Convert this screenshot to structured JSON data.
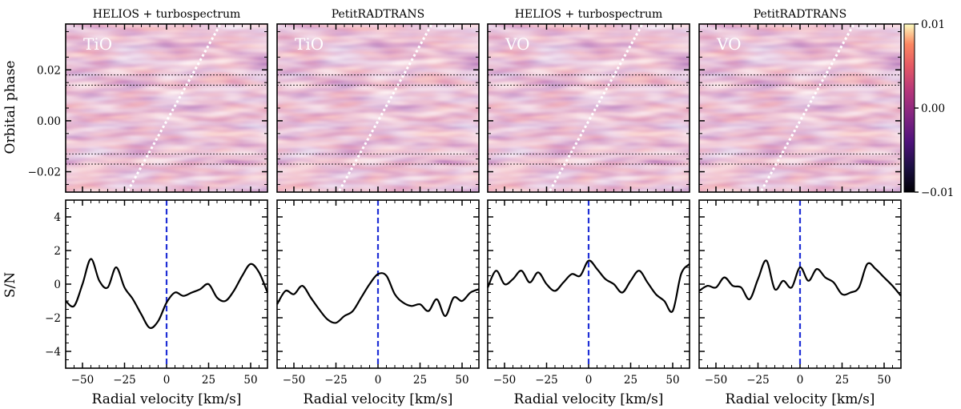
{
  "colors": {
    "panel_low": "#1b0f3d",
    "panel_mid": "#8e2f6a",
    "panel_high": "#ffe9a9",
    "trail_line": "#ffffff",
    "rv_marker": "#1f2fd6",
    "sn_curve": "#000000"
  },
  "labels": {
    "ylabel_top": "Orbital phase",
    "ylabel_bottom": "S/N",
    "xlabel": "Radial velocity [km/s]"
  },
  "colorbar": {
    "ticks": [
      "0.01",
      "0.00",
      "−0.01"
    ],
    "vmin": -0.01,
    "vmax": 0.01
  },
  "chart_data": [
    {
      "type": "heatmap",
      "title": "HELIOS + turbospectrum",
      "molecule": "TiO",
      "xlim": [
        -60,
        60
      ],
      "ylim": [
        -0.028,
        0.038
      ],
      "yticks": [
        "0.02",
        "0.00",
        "−0.02"
      ],
      "ytick_values": [
        0.02,
        0.0,
        -0.02
      ],
      "trail": {
        "x1": -23,
        "y1": -0.0275,
        "x2": 32,
        "y2": 0.038
      },
      "dashed_phases": [
        0.018,
        0.014,
        -0.013,
        -0.017
      ]
    },
    {
      "type": "heatmap",
      "title": "PetitRADTRANS",
      "molecule": "TiO",
      "xlim": [
        -60,
        60
      ],
      "ylim": [
        -0.028,
        0.038
      ],
      "trail": {
        "x1": -23,
        "y1": -0.0275,
        "x2": 32,
        "y2": 0.038
      },
      "dashed_phases": [
        0.018,
        0.014,
        -0.013,
        -0.017
      ]
    },
    {
      "type": "heatmap",
      "title": "HELIOS + turbospectrum",
      "molecule": "VO",
      "xlim": [
        -60,
        60
      ],
      "ylim": [
        -0.028,
        0.038
      ],
      "trail": {
        "x1": -23,
        "y1": -0.0275,
        "x2": 32,
        "y2": 0.038
      },
      "dashed_phases": [
        0.018,
        0.014,
        -0.013,
        -0.017
      ]
    },
    {
      "type": "heatmap",
      "title": "PetitRADTRANS",
      "molecule": "VO",
      "xlim": [
        -60,
        60
      ],
      "ylim": [
        -0.028,
        0.038
      ],
      "trail": {
        "x1": -23,
        "y1": -0.0275,
        "x2": 32,
        "y2": 0.038
      },
      "dashed_phases": [
        0.018,
        0.014,
        -0.013,
        -0.017
      ]
    },
    {
      "type": "line",
      "xlim": [
        -60,
        60
      ],
      "ylim": [
        -5,
        5
      ],
      "xticks": [
        "−50",
        "−25",
        "0",
        "25",
        "50"
      ],
      "xtick_values": [
        -50,
        -25,
        0,
        25,
        50
      ],
      "yticks": [
        "4",
        "2",
        "0",
        "−2",
        "−4"
      ],
      "ytick_values": [
        4,
        2,
        0,
        -2,
        -4
      ],
      "marker_x": 0,
      "x": [
        -60,
        -55,
        -50,
        -45,
        -40,
        -35,
        -30,
        -25,
        -20,
        -15,
        -10,
        -5,
        0,
        5,
        10,
        15,
        20,
        25,
        30,
        35,
        40,
        45,
        50,
        55,
        60
      ],
      "y": [
        -1.0,
        -1.3,
        0.0,
        1.5,
        0.2,
        -0.2,
        1.0,
        -0.2,
        -0.9,
        -1.8,
        -2.6,
        -2.2,
        -1.1,
        -0.5,
        -0.7,
        -0.5,
        -0.3,
        0.0,
        -0.8,
        -1.0,
        -0.4,
        0.5,
        1.2,
        0.7,
        -0.5
      ]
    },
    {
      "type": "line",
      "xlim": [
        -60,
        60
      ],
      "ylim": [
        -5,
        5
      ],
      "xticks": [
        "−50",
        "−25",
        "0",
        "25",
        "50"
      ],
      "xtick_values": [
        -50,
        -25,
        0,
        25,
        50
      ],
      "marker_x": 0,
      "x": [
        -60,
        -55,
        -50,
        -45,
        -40,
        -35,
        -30,
        -25,
        -20,
        -15,
        -10,
        -5,
        0,
        5,
        10,
        15,
        20,
        25,
        30,
        35,
        40,
        45,
        50,
        55,
        60
      ],
      "y": [
        -1.2,
        -0.4,
        -0.6,
        -0.1,
        -0.8,
        -1.5,
        -2.1,
        -2.3,
        -1.9,
        -1.6,
        -0.8,
        0.0,
        0.6,
        0.5,
        -0.6,
        -1.1,
        -1.3,
        -1.2,
        -1.6,
        -0.9,
        -1.9,
        -0.8,
        -1.0,
        -0.5,
        -0.3
      ]
    },
    {
      "type": "line",
      "xlim": [
        -60,
        60
      ],
      "ylim": [
        -5,
        5
      ],
      "xticks": [
        "−50",
        "−25",
        "0",
        "25",
        "50"
      ],
      "xtick_values": [
        -50,
        -25,
        0,
        25,
        50
      ],
      "marker_x": 0,
      "x": [
        -60,
        -55,
        -50,
        -45,
        -40,
        -35,
        -30,
        -25,
        -20,
        -15,
        -10,
        -5,
        0,
        5,
        10,
        15,
        20,
        25,
        30,
        35,
        40,
        45,
        50,
        55,
        60
      ],
      "y": [
        -0.2,
        0.8,
        0.0,
        0.3,
        0.8,
        0.1,
        0.7,
        0.0,
        -0.4,
        0.1,
        0.6,
        0.5,
        1.4,
        0.9,
        0.3,
        0.0,
        -0.5,
        0.2,
        0.8,
        0.1,
        -0.6,
        -1.0,
        -1.6,
        0.6,
        1.2
      ]
    },
    {
      "type": "line",
      "xlim": [
        -60,
        60
      ],
      "ylim": [
        -5,
        5
      ],
      "xticks": [
        "−50",
        "−25",
        "0",
        "25",
        "50"
      ],
      "xtick_values": [
        -50,
        -25,
        0,
        25,
        50
      ],
      "marker_x": 0,
      "x": [
        -60,
        -55,
        -50,
        -45,
        -40,
        -35,
        -30,
        -25,
        -20,
        -15,
        -10,
        -5,
        0,
        5,
        10,
        15,
        20,
        25,
        30,
        35,
        40,
        45,
        50,
        55,
        60
      ],
      "y": [
        -0.4,
        -0.1,
        -0.2,
        0.4,
        -0.1,
        -0.2,
        -0.9,
        0.3,
        1.4,
        -0.3,
        0.2,
        -0.2,
        1.0,
        0.2,
        0.9,
        0.4,
        0.1,
        -0.6,
        -0.5,
        -0.2,
        1.2,
        0.9,
        0.4,
        -0.1,
        -0.7
      ]
    }
  ]
}
